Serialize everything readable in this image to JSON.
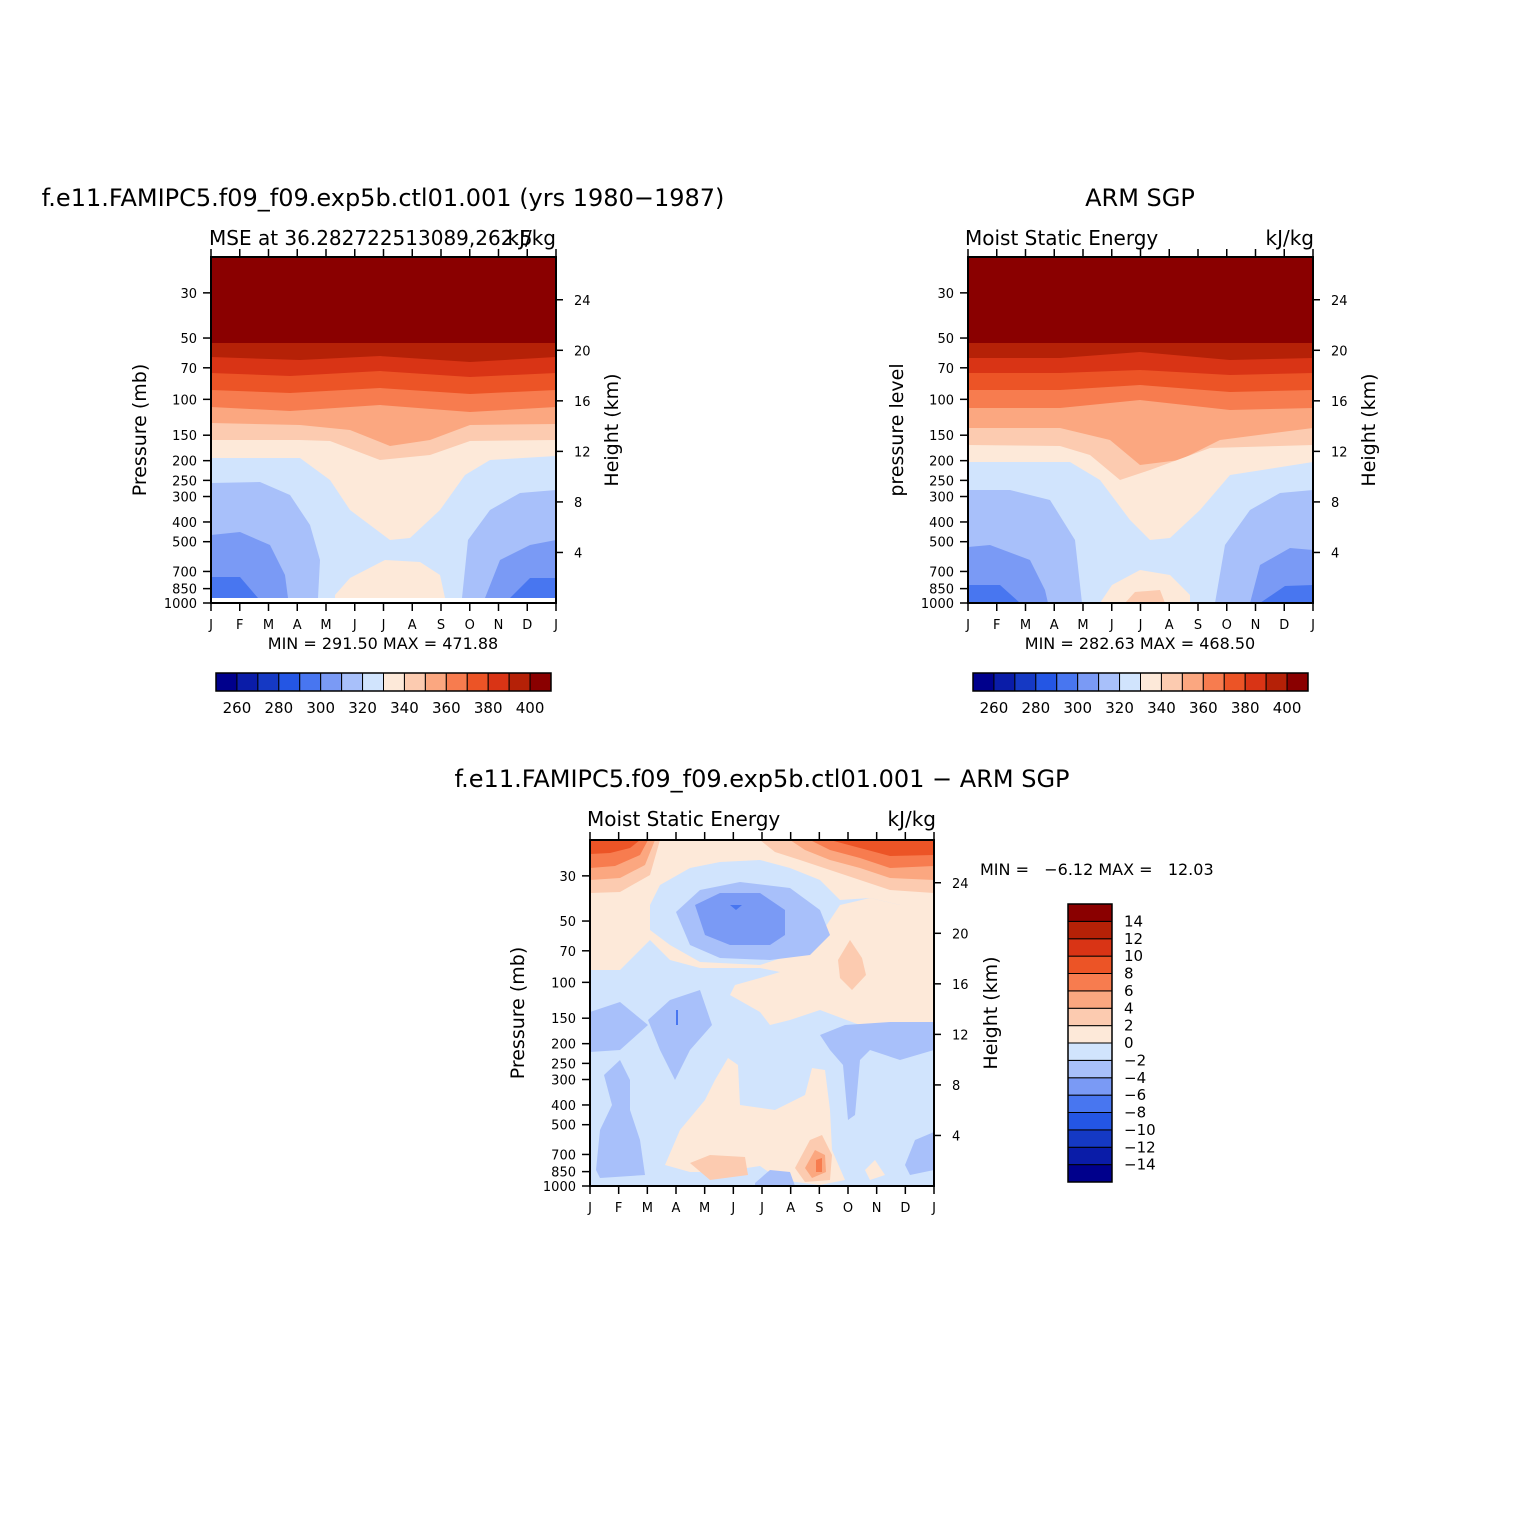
{
  "chart_data": [
    {
      "type": "heatmap",
      "panel": "model",
      "title": "f.e11.FAMIPC5.f09_f09.exp5b.ctl01.001 (yrs 1980−1987)",
      "left_string": "MSE at 36.282722513089,262.5",
      "right_string": "kJ/kg",
      "ylabel": "Pressure (mb)",
      "ylabel_right": "Height (km)",
      "x_ticks": [
        "J",
        "F",
        "M",
        "A",
        "M",
        "J",
        "J",
        "A",
        "S",
        "O",
        "N",
        "D",
        "J"
      ],
      "y_ticks": [
        "30",
        "50",
        "70",
        "100",
        "150",
        "200",
        "250",
        "300",
        "400",
        "500",
        "700",
        "850",
        "1000"
      ],
      "y_ticks_right": [
        "24",
        "20",
        "16",
        "12",
        "8",
        "4"
      ],
      "min_max_text": "MIN = 291.50 MAX = 471.88",
      "min": 291.5,
      "max": 471.88,
      "y_range": [
        1000,
        20
      ],
      "x_range": [
        "J",
        "J"
      ]
    },
    {
      "type": "heatmap",
      "panel": "observation",
      "title": "ARM SGP",
      "left_string": "Moist Static Energy",
      "right_string": "kJ/kg",
      "ylabel": "pressure level",
      "ylabel_right": "Height (km)",
      "x_ticks": [
        "J",
        "F",
        "M",
        "A",
        "M",
        "J",
        "J",
        "A",
        "S",
        "O",
        "N",
        "D",
        "J"
      ],
      "y_ticks": [
        "30",
        "50",
        "70",
        "100",
        "150",
        "200",
        "250",
        "300",
        "400",
        "500",
        "700",
        "850",
        "1000"
      ],
      "y_ticks_right": [
        "24",
        "20",
        "16",
        "12",
        "8",
        "4"
      ],
      "min_max_text": "MIN = 282.63 MAX = 468.50",
      "min": 282.63,
      "max": 468.5,
      "y_range": [
        1000,
        20
      ],
      "x_range": [
        "J",
        "J"
      ]
    },
    {
      "type": "heatmap",
      "panel": "difference",
      "title": "f.e11.FAMIPC5.f09_f09.exp5b.ctl01.001 − ARM SGP",
      "left_string": "Moist Static Energy",
      "right_string": "kJ/kg",
      "ylabel": "Pressure (mb)",
      "ylabel_right": "Height (km)",
      "x_ticks": [
        "J",
        "F",
        "M",
        "A",
        "M",
        "J",
        "J",
        "A",
        "S",
        "O",
        "N",
        "D",
        "J"
      ],
      "y_ticks": [
        "30",
        "50",
        "70",
        "100",
        "150",
        "200",
        "250",
        "300",
        "400",
        "500",
        "700",
        "850",
        "1000"
      ],
      "y_ticks_right": [
        "24",
        "20",
        "16",
        "12",
        "8",
        "4"
      ],
      "min_max_text": "MIN =   −6.12 MAX =   12.03",
      "min": -6.12,
      "max": 12.03,
      "y_range": [
        1000,
        20
      ],
      "x_range": [
        "J",
        "J"
      ]
    }
  ],
  "colorbar_mse": {
    "colors": [
      "#00008c",
      "#0a1ca8",
      "#1539c4",
      "#2456e4",
      "#4876f0",
      "#7a9af5",
      "#a8c0fa",
      "#d1e4fd",
      "#fde9d9",
      "#fccbb0",
      "#fba780",
      "#f77c4f",
      "#ec5426",
      "#d93415",
      "#b52107",
      "#8a0000"
    ],
    "labels": [
      "260",
      "280",
      "300",
      "320",
      "340",
      "360",
      "380",
      "400"
    ]
  },
  "colorbar_diff": {
    "colors": [
      "#00008c",
      "#0a1ca8",
      "#1539c4",
      "#2456e4",
      "#4876f0",
      "#7a9af5",
      "#a8c0fa",
      "#d1e4fd",
      "#fde9d9",
      "#fccbb0",
      "#fba780",
      "#f77c4f",
      "#ec5426",
      "#d93415",
      "#b52107",
      "#8a0000"
    ],
    "labels": [
      "−14",
      "−12",
      "−10",
      "−8",
      "−6",
      "−4",
      "−2",
      "0",
      "2",
      "4",
      "6",
      "8",
      "10",
      "12",
      "14"
    ]
  }
}
